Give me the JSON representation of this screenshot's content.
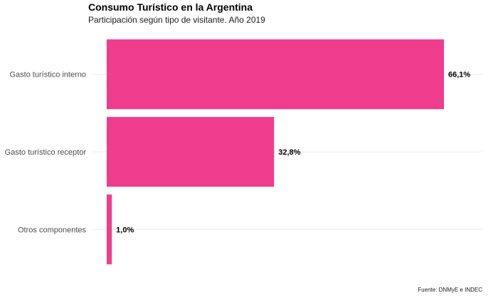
{
  "chart_data": {
    "type": "bar",
    "orientation": "horizontal",
    "title": "Consumo Turístico en la Argentina",
    "subtitle": "Participación según tipo de visitante. Año 2019",
    "source": "Fuente: DNMyE e INDEC",
    "categories": [
      "Gasto turístico interno",
      "Gasto turístico receptor",
      "Otros componentes"
    ],
    "values": [
      66.1,
      32.8,
      1.0
    ],
    "value_labels": [
      "66,1%",
      "32,8%",
      "1,0%"
    ],
    "unit": "%",
    "xlim": [
      0,
      66.1
    ],
    "bar_color": "#f03c8c",
    "grid": "horizontal",
    "legend": "none"
  }
}
